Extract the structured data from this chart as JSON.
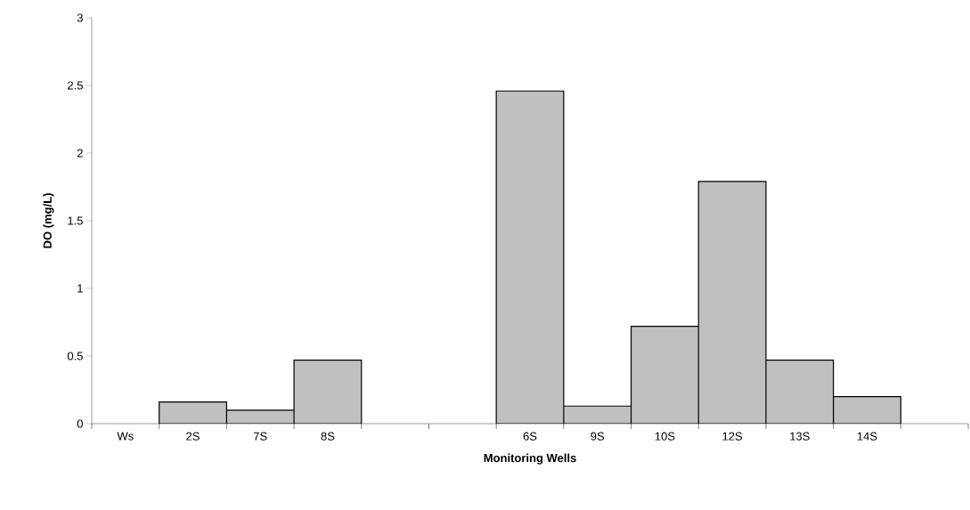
{
  "chart_data": {
    "type": "bar",
    "xlabel": "Monitoring Wells",
    "ylabel": "DO (mg/L)",
    "categories": [
      "Ws",
      "2S",
      "7S",
      "8S",
      null,
      null,
      "6S",
      "9S",
      "10S",
      "12S",
      "13S",
      "14S",
      null
    ],
    "values": [
      null,
      0.16,
      0.1,
      0.47,
      null,
      null,
      2.46,
      0.13,
      0.72,
      1.79,
      0.47,
      0.2,
      null
    ],
    "color": "#c0c0c0",
    "ylim": [
      0,
      3
    ],
    "yticks": [
      0,
      0.5,
      1,
      1.5,
      2,
      2.5,
      3
    ]
  }
}
